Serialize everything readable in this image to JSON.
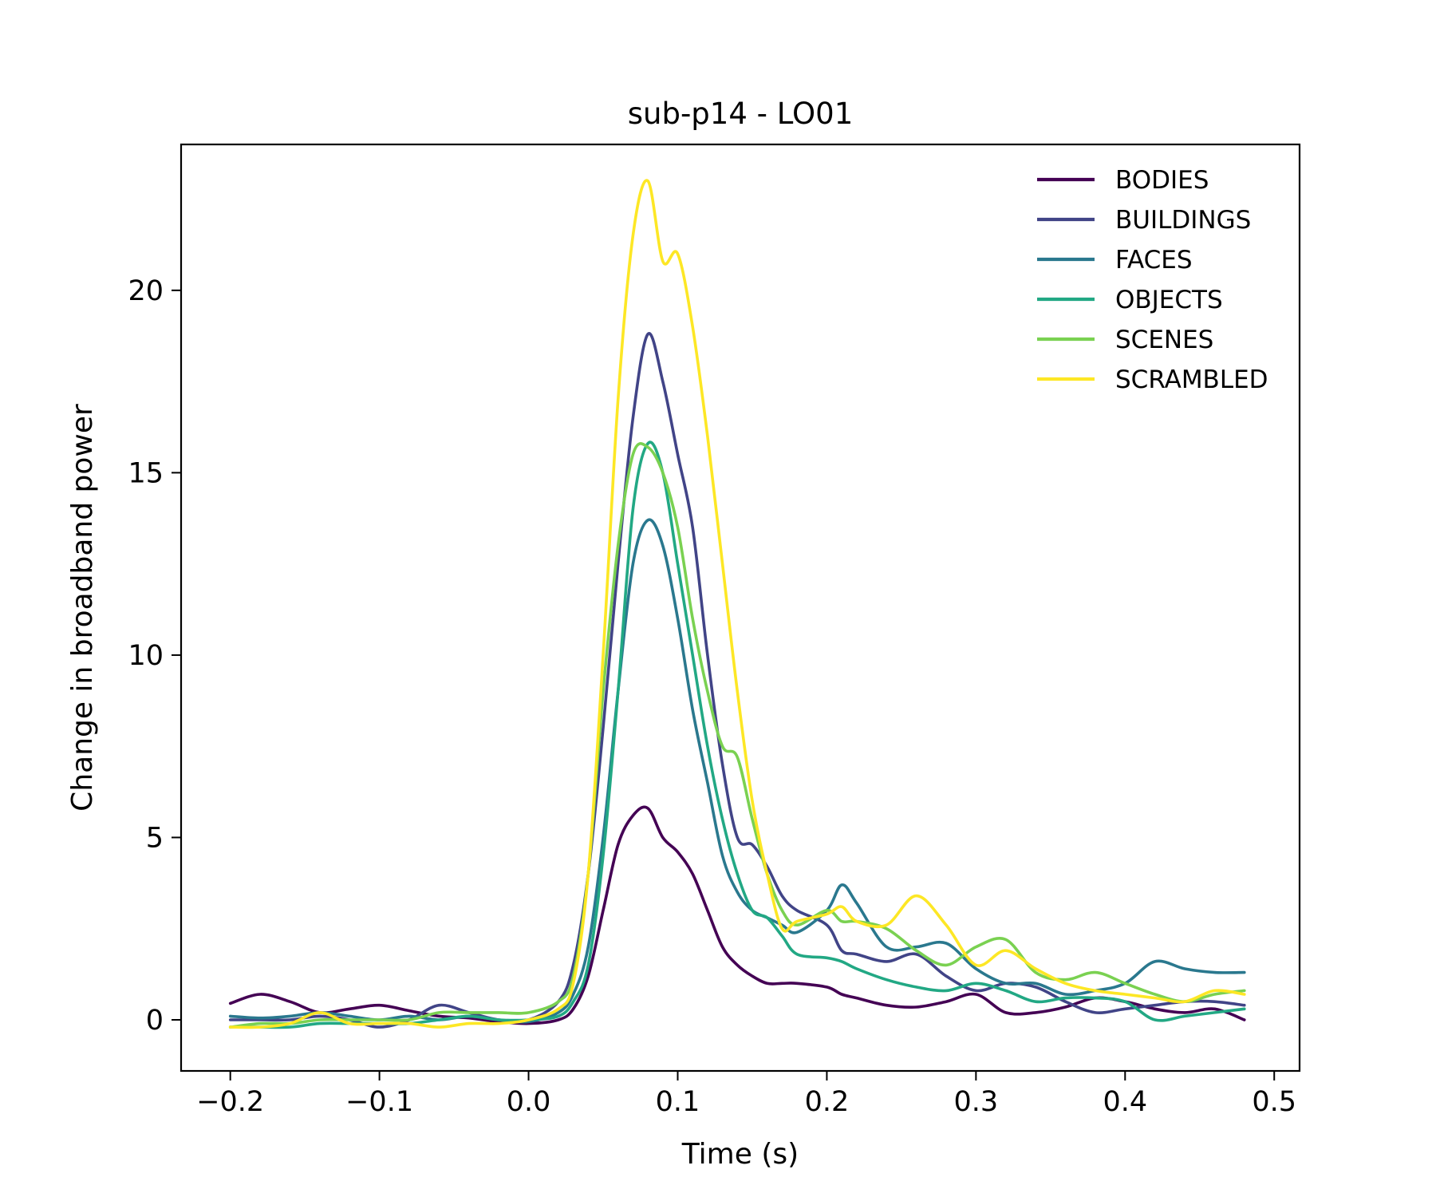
{
  "chart_data": {
    "type": "line",
    "title": "sub-p14 - LO01",
    "xlabel": "Time (s)",
    "ylabel": "Change in broadband power",
    "xlim": [
      -0.233,
      0.517
    ],
    "ylim": [
      -1.4,
      24.0
    ],
    "xticks": [
      -0.2,
      -0.1,
      0.0,
      0.1,
      0.2,
      0.3,
      0.4,
      0.5
    ],
    "xtick_labels": [
      "−0.2",
      "−0.1",
      "0.0",
      "0.1",
      "0.2",
      "0.3",
      "0.4",
      "0.5"
    ],
    "yticks": [
      0,
      5,
      10,
      15,
      20
    ],
    "ytick_labels": [
      "0",
      "5",
      "10",
      "15",
      "20"
    ],
    "grid": false,
    "legend_position": "top-right",
    "x": [
      -0.2,
      -0.18,
      -0.16,
      -0.14,
      -0.12,
      -0.1,
      -0.08,
      -0.06,
      -0.04,
      -0.02,
      0.0,
      0.02,
      0.03,
      0.04,
      0.05,
      0.06,
      0.07,
      0.08,
      0.09,
      0.1,
      0.11,
      0.12,
      0.13,
      0.14,
      0.15,
      0.16,
      0.17,
      0.18,
      0.2,
      0.21,
      0.22,
      0.24,
      0.26,
      0.28,
      0.3,
      0.32,
      0.34,
      0.36,
      0.38,
      0.4,
      0.42,
      0.44,
      0.46,
      0.48
    ],
    "series": [
      {
        "name": "BODIES",
        "color": "#440154",
        "values": [
          0.45,
          0.7,
          0.5,
          0.2,
          0.3,
          0.4,
          0.25,
          0.1,
          0.05,
          -0.05,
          -0.1,
          0.0,
          0.3,
          1.2,
          3.0,
          4.8,
          5.6,
          5.8,
          5.0,
          4.6,
          4.0,
          3.0,
          2.0,
          1.5,
          1.2,
          1.0,
          1.0,
          1.0,
          0.9,
          0.7,
          0.6,
          0.4,
          0.35,
          0.5,
          0.7,
          0.2,
          0.2,
          0.35,
          0.6,
          0.5,
          0.3,
          0.2,
          0.3,
          0.0
        ]
      },
      {
        "name": "BUILDINGS",
        "color": "#414487",
        "values": [
          0.0,
          0.0,
          0.0,
          0.1,
          0.0,
          -0.2,
          0.0,
          0.4,
          0.2,
          0.0,
          0.0,
          0.5,
          1.5,
          4.0,
          8.0,
          12.5,
          16.5,
          18.8,
          17.5,
          15.5,
          13.5,
          10.0,
          7.0,
          5.0,
          4.8,
          4.2,
          3.4,
          3.0,
          2.6,
          1.9,
          1.8,
          1.6,
          1.8,
          1.2,
          0.8,
          1.0,
          0.9,
          0.5,
          0.2,
          0.3,
          0.4,
          0.5,
          0.5,
          0.4
        ]
      },
      {
        "name": "FACES",
        "color": "#2a788e",
        "values": [
          0.1,
          0.05,
          0.1,
          0.2,
          0.1,
          0.0,
          0.1,
          0.0,
          0.1,
          0.0,
          -0.05,
          0.2,
          0.7,
          2.0,
          5.0,
          9.0,
          12.5,
          13.7,
          13.0,
          11.0,
          8.5,
          6.5,
          4.5,
          3.5,
          3.0,
          2.8,
          2.6,
          2.4,
          3.0,
          3.7,
          3.2,
          2.0,
          2.0,
          2.1,
          1.4,
          1.0,
          1.0,
          0.7,
          0.8,
          1.0,
          1.6,
          1.4,
          1.3,
          1.3
        ]
      },
      {
        "name": "OBJECTS",
        "color": "#22a884",
        "values": [
          -0.2,
          -0.2,
          -0.2,
          -0.1,
          -0.1,
          -0.1,
          -0.1,
          0.0,
          0.1,
          0.0,
          0.0,
          0.1,
          0.5,
          1.5,
          4.5,
          9.0,
          14.0,
          15.8,
          15.0,
          12.5,
          10.0,
          7.5,
          5.5,
          4.0,
          3.0,
          2.8,
          2.3,
          1.8,
          1.7,
          1.6,
          1.4,
          1.1,
          0.9,
          0.8,
          1.0,
          0.8,
          0.5,
          0.6,
          0.6,
          0.5,
          0.0,
          0.1,
          0.2,
          0.3
        ]
      },
      {
        "name": "SCENES",
        "color": "#7ad151",
        "values": [
          -0.2,
          -0.1,
          -0.1,
          0.0,
          0.0,
          0.0,
          0.0,
          0.2,
          0.2,
          0.2,
          0.2,
          0.5,
          1.2,
          4.0,
          9.0,
          13.0,
          15.5,
          15.7,
          15.0,
          13.5,
          11.0,
          9.0,
          7.5,
          7.2,
          5.5,
          4.0,
          3.0,
          2.6,
          3.0,
          2.7,
          2.7,
          2.5,
          1.9,
          1.5,
          2.0,
          2.2,
          1.3,
          1.1,
          1.3,
          1.0,
          0.7,
          0.5,
          0.7,
          0.8
        ]
      },
      {
        "name": "SCRAMBLED",
        "color": "#fde725",
        "values": [
          -0.2,
          -0.2,
          -0.1,
          0.2,
          -0.1,
          -0.1,
          -0.1,
          -0.2,
          -0.1,
          -0.1,
          0.0,
          0.3,
          1.0,
          4.0,
          10.0,
          17.0,
          21.5,
          23.0,
          20.8,
          21.0,
          19.0,
          16.0,
          12.5,
          9.0,
          6.0,
          4.0,
          2.5,
          2.7,
          2.9,
          3.1,
          2.7,
          2.6,
          3.4,
          2.6,
          1.5,
          1.9,
          1.4,
          1.0,
          0.8,
          0.7,
          0.6,
          0.5,
          0.8,
          0.7
        ]
      }
    ]
  }
}
